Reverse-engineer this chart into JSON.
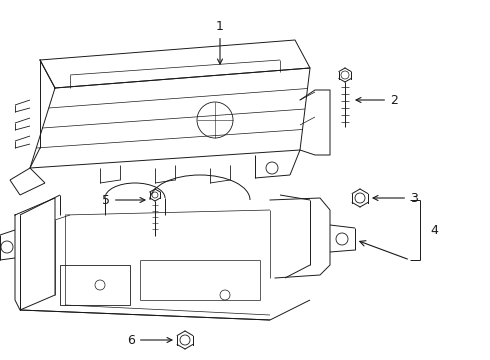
{
  "background_color": "#ffffff",
  "line_color": "#1a1a1a",
  "figsize": [
    4.9,
    3.6
  ],
  "dpi": 100,
  "label_fs": 9,
  "lw": 0.7
}
